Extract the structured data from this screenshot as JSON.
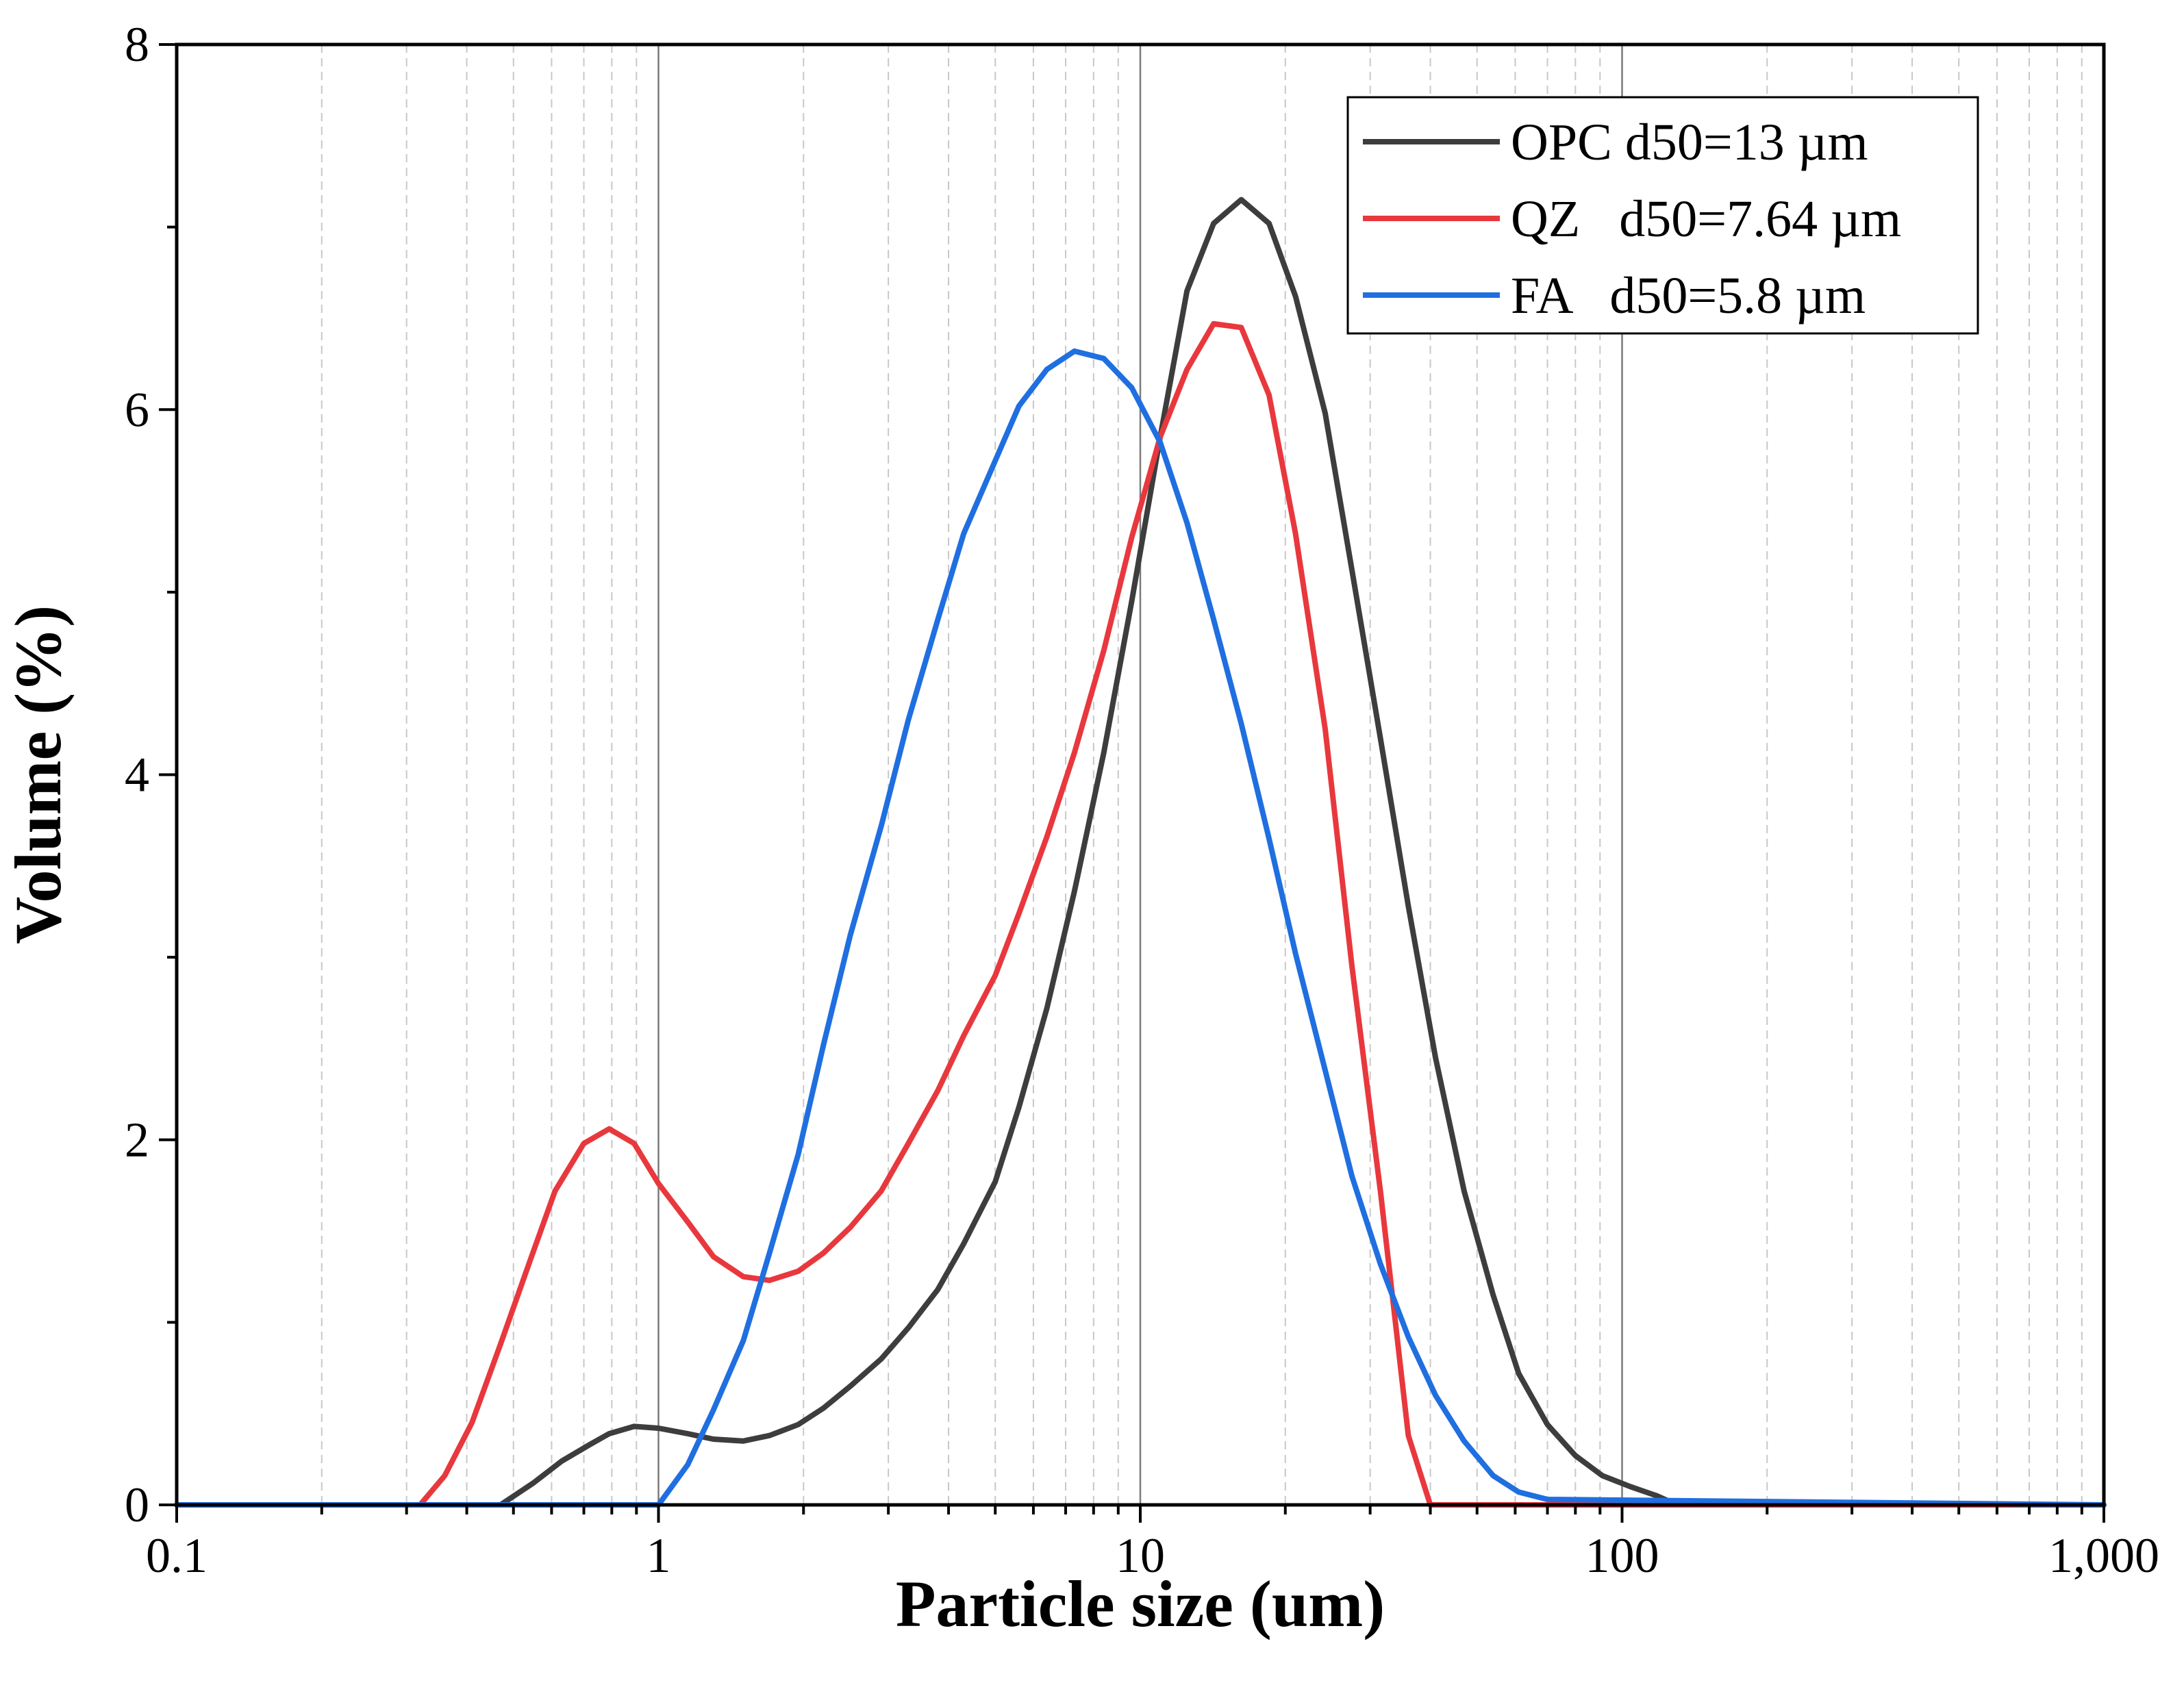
{
  "chart_data": {
    "type": "line",
    "title": "",
    "xlabel": "Particle size (um)",
    "ylabel": "Volume (%)",
    "xscale": "log",
    "xlim": [
      0.1,
      1000
    ],
    "ylim": [
      0,
      8
    ],
    "x_ticks": [
      0.1,
      1,
      10,
      100,
      1000
    ],
    "x_tick_labels": [
      "0.1",
      "1",
      "10",
      "100",
      "1,000"
    ],
    "y_ticks": [
      0,
      2,
      4,
      6,
      8
    ],
    "y_tick_labels": [
      "0",
      "2",
      "4",
      "6",
      "8"
    ],
    "grid": "vertical decade lines solid, minor lines dashed",
    "legend_position": "top-right",
    "series": [
      {
        "name": "OPC d50=13 µm",
        "color": "#3d3d3d",
        "x": [
          0.1,
          0.47,
          0.55,
          0.63,
          0.72,
          0.79,
          0.89,
          1.0,
          1.15,
          1.3,
          1.5,
          1.7,
          1.95,
          2.2,
          2.5,
          2.9,
          3.3,
          3.8,
          4.3,
          5.0,
          5.6,
          6.4,
          7.3,
          8.4,
          9.6,
          11,
          12.5,
          14.2,
          16.2,
          18.5,
          21,
          24.2,
          27.5,
          31.5,
          36,
          41,
          47,
          54,
          61,
          70,
          80,
          91,
          104,
          118,
          130,
          1000
        ],
        "y": [
          0,
          0,
          0.12,
          0.24,
          0.33,
          0.39,
          0.43,
          0.42,
          0.39,
          0.36,
          0.35,
          0.38,
          0.44,
          0.53,
          0.65,
          0.8,
          0.97,
          1.18,
          1.43,
          1.77,
          2.18,
          2.72,
          3.36,
          4.12,
          4.95,
          5.85,
          6.65,
          7.02,
          7.15,
          7.02,
          6.62,
          5.98,
          5.12,
          4.2,
          3.28,
          2.45,
          1.72,
          1.15,
          0.72,
          0.44,
          0.27,
          0.16,
          0.1,
          0.05,
          0,
          0
        ]
      },
      {
        "name": "QZ   d50=7.64 µm",
        "color": "#e8383d",
        "x": [
          0.1,
          0.32,
          0.36,
          0.41,
          0.47,
          0.54,
          0.61,
          0.7,
          0.79,
          0.89,
          1.0,
          1.15,
          1.3,
          1.5,
          1.7,
          1.95,
          2.2,
          2.5,
          2.9,
          3.3,
          3.8,
          4.3,
          5.0,
          5.6,
          6.4,
          7.3,
          8.4,
          9.6,
          11,
          12.5,
          14.2,
          16.2,
          18.5,
          21,
          24.2,
          27.5,
          31.5,
          36,
          40,
          1000
        ],
        "y": [
          0,
          0,
          0.16,
          0.45,
          0.88,
          1.33,
          1.72,
          1.98,
          2.06,
          1.98,
          1.76,
          1.55,
          1.36,
          1.25,
          1.23,
          1.28,
          1.38,
          1.52,
          1.72,
          1.98,
          2.27,
          2.57,
          2.9,
          3.24,
          3.66,
          4.12,
          4.68,
          5.3,
          5.85,
          6.22,
          6.47,
          6.45,
          6.08,
          5.32,
          4.25,
          2.95,
          1.72,
          0.38,
          0,
          0
        ]
      },
      {
        "name": "FA   d50=5.8 µm",
        "color": "#1f6fe0",
        "x": [
          0.1,
          1.0,
          1.15,
          1.3,
          1.5,
          1.7,
          1.95,
          2.2,
          2.5,
          2.9,
          3.3,
          3.8,
          4.3,
          5.0,
          5.6,
          6.4,
          7.3,
          8.4,
          9.6,
          11,
          12.5,
          14.2,
          16.2,
          18.5,
          21,
          24.2,
          27.5,
          31.5,
          36,
          41,
          47,
          54,
          61,
          70,
          1000
        ],
        "y": [
          0,
          0,
          0.22,
          0.52,
          0.9,
          1.38,
          1.92,
          2.52,
          3.12,
          3.72,
          4.3,
          4.85,
          5.32,
          5.72,
          6.02,
          6.22,
          6.32,
          6.28,
          6.12,
          5.82,
          5.38,
          4.85,
          4.28,
          3.65,
          3.02,
          2.38,
          1.8,
          1.32,
          0.92,
          0.6,
          0.35,
          0.16,
          0.07,
          0.03,
          0
        ]
      }
    ]
  }
}
